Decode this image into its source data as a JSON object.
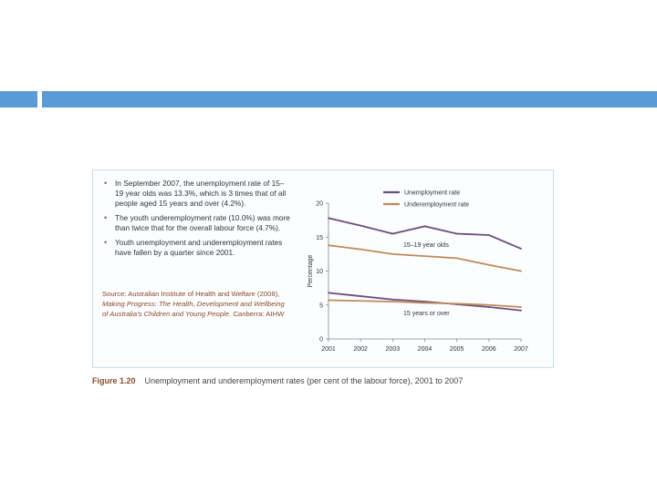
{
  "colors": {
    "accent_bar": "#5b9bd5",
    "unemployment": "#6b4f7c",
    "underemployment": "#c08a5a"
  },
  "bullets": [
    "In September 2007, the unemployment rate of 15–19 year olds was 13.3%, which is 3 times that of all people aged 15 years and over (4.2%).",
    "The youth underemployment rate (10.0%) was more than twice that for the overall labour force (4.7%).",
    "Youth unemployment and underemployment rates have fallen by a quarter since 2001."
  ],
  "source": {
    "prefix": "Source: Australian Institute of Health and Welfare (2008),",
    "title": "Making Progress: The Health, Development and Wellbeing of Australia's Children and Young People.",
    "suffix": "Canberra: AIHW"
  },
  "caption": {
    "number": "Figure 1.20",
    "text": "Unemployment and underemployment rates (per cent of the labour force), 2001 to 2007"
  },
  "chart_data": {
    "type": "line",
    "x": [
      2001,
      2002,
      2003,
      2004,
      2005,
      2006,
      2007
    ],
    "ylim": [
      0,
      20
    ],
    "yticks": [
      0,
      5,
      10,
      15,
      20
    ],
    "ylabel": "Percentage",
    "xlabel": "",
    "grid": false,
    "legend_position": "top",
    "legend": [
      "Unemployment rate",
      "Underemployment rate"
    ],
    "annotations": [
      "15–19 year olds",
      "15 years or over"
    ],
    "series": [
      {
        "name": "Unemployment rate",
        "group": "15–19 year olds",
        "values": [
          17.8,
          16.7,
          15.5,
          16.6,
          15.5,
          15.3,
          13.3
        ]
      },
      {
        "name": "Underemployment rate",
        "group": "15–19 year olds",
        "values": [
          13.8,
          13.2,
          12.5,
          12.2,
          11.9,
          10.9,
          10.0
        ]
      },
      {
        "name": "Unemployment rate",
        "group": "15 years or over",
        "values": [
          6.8,
          6.3,
          5.8,
          5.5,
          5.1,
          4.7,
          4.2
        ]
      },
      {
        "name": "Underemployment rate",
        "group": "15 years or over",
        "values": [
          5.7,
          5.6,
          5.5,
          5.3,
          5.2,
          5.0,
          4.7
        ]
      }
    ]
  }
}
